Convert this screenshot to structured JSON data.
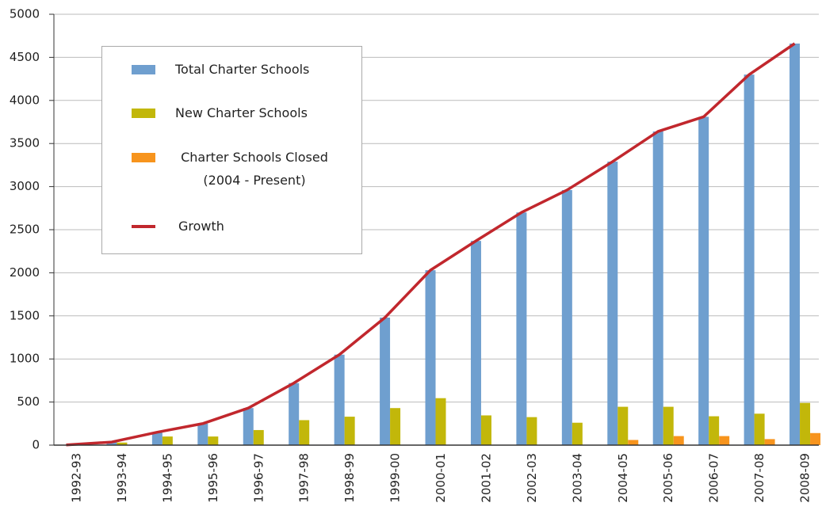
{
  "chart_data": {
    "type": "bar",
    "categories": [
      "1992-93",
      "1993-94",
      "1994-95",
      "1995-96",
      "1996-97",
      "1997-98",
      "1998-99",
      "1999-00",
      "2000-01",
      "2001-02",
      "2002-03",
      "2003-04",
      "2004-05",
      "2005-06",
      "2006-07",
      "2007-08",
      "2008-09"
    ],
    "series": [
      {
        "name": "Total Charter Schools",
        "color": "#6f9fcf",
        "values": [
          2,
          36,
          150,
          250,
          430,
          720,
          1050,
          1480,
          2030,
          2370,
          2700,
          2960,
          3290,
          3640,
          3810,
          4300,
          4660
        ]
      },
      {
        "name": "New Charter Schools",
        "color": "#c2b70a",
        "values": [
          2,
          30,
          100,
          100,
          175,
          290,
          330,
          430,
          545,
          345,
          325,
          260,
          445,
          445,
          335,
          365,
          490
        ]
      },
      {
        "name": "Charter Schools Closed\n(2004 - Present)",
        "color": "#f7941d",
        "values": [
          null,
          null,
          null,
          null,
          null,
          null,
          null,
          null,
          null,
          null,
          null,
          null,
          60,
          105,
          105,
          70,
          140
        ]
      },
      {
        "name": "Growth",
        "type": "line",
        "color": "#c1272d",
        "values": [
          2,
          36,
          150,
          250,
          430,
          720,
          1050,
          1480,
          2030,
          2370,
          2700,
          2960,
          3290,
          3640,
          3810,
          4300,
          4660
        ]
      }
    ],
    "ylim": [
      0,
      5000
    ],
    "yticks": [
      0,
      500,
      1000,
      1500,
      2000,
      2500,
      3000,
      3500,
      4000,
      4500,
      5000
    ],
    "grid": true
  }
}
